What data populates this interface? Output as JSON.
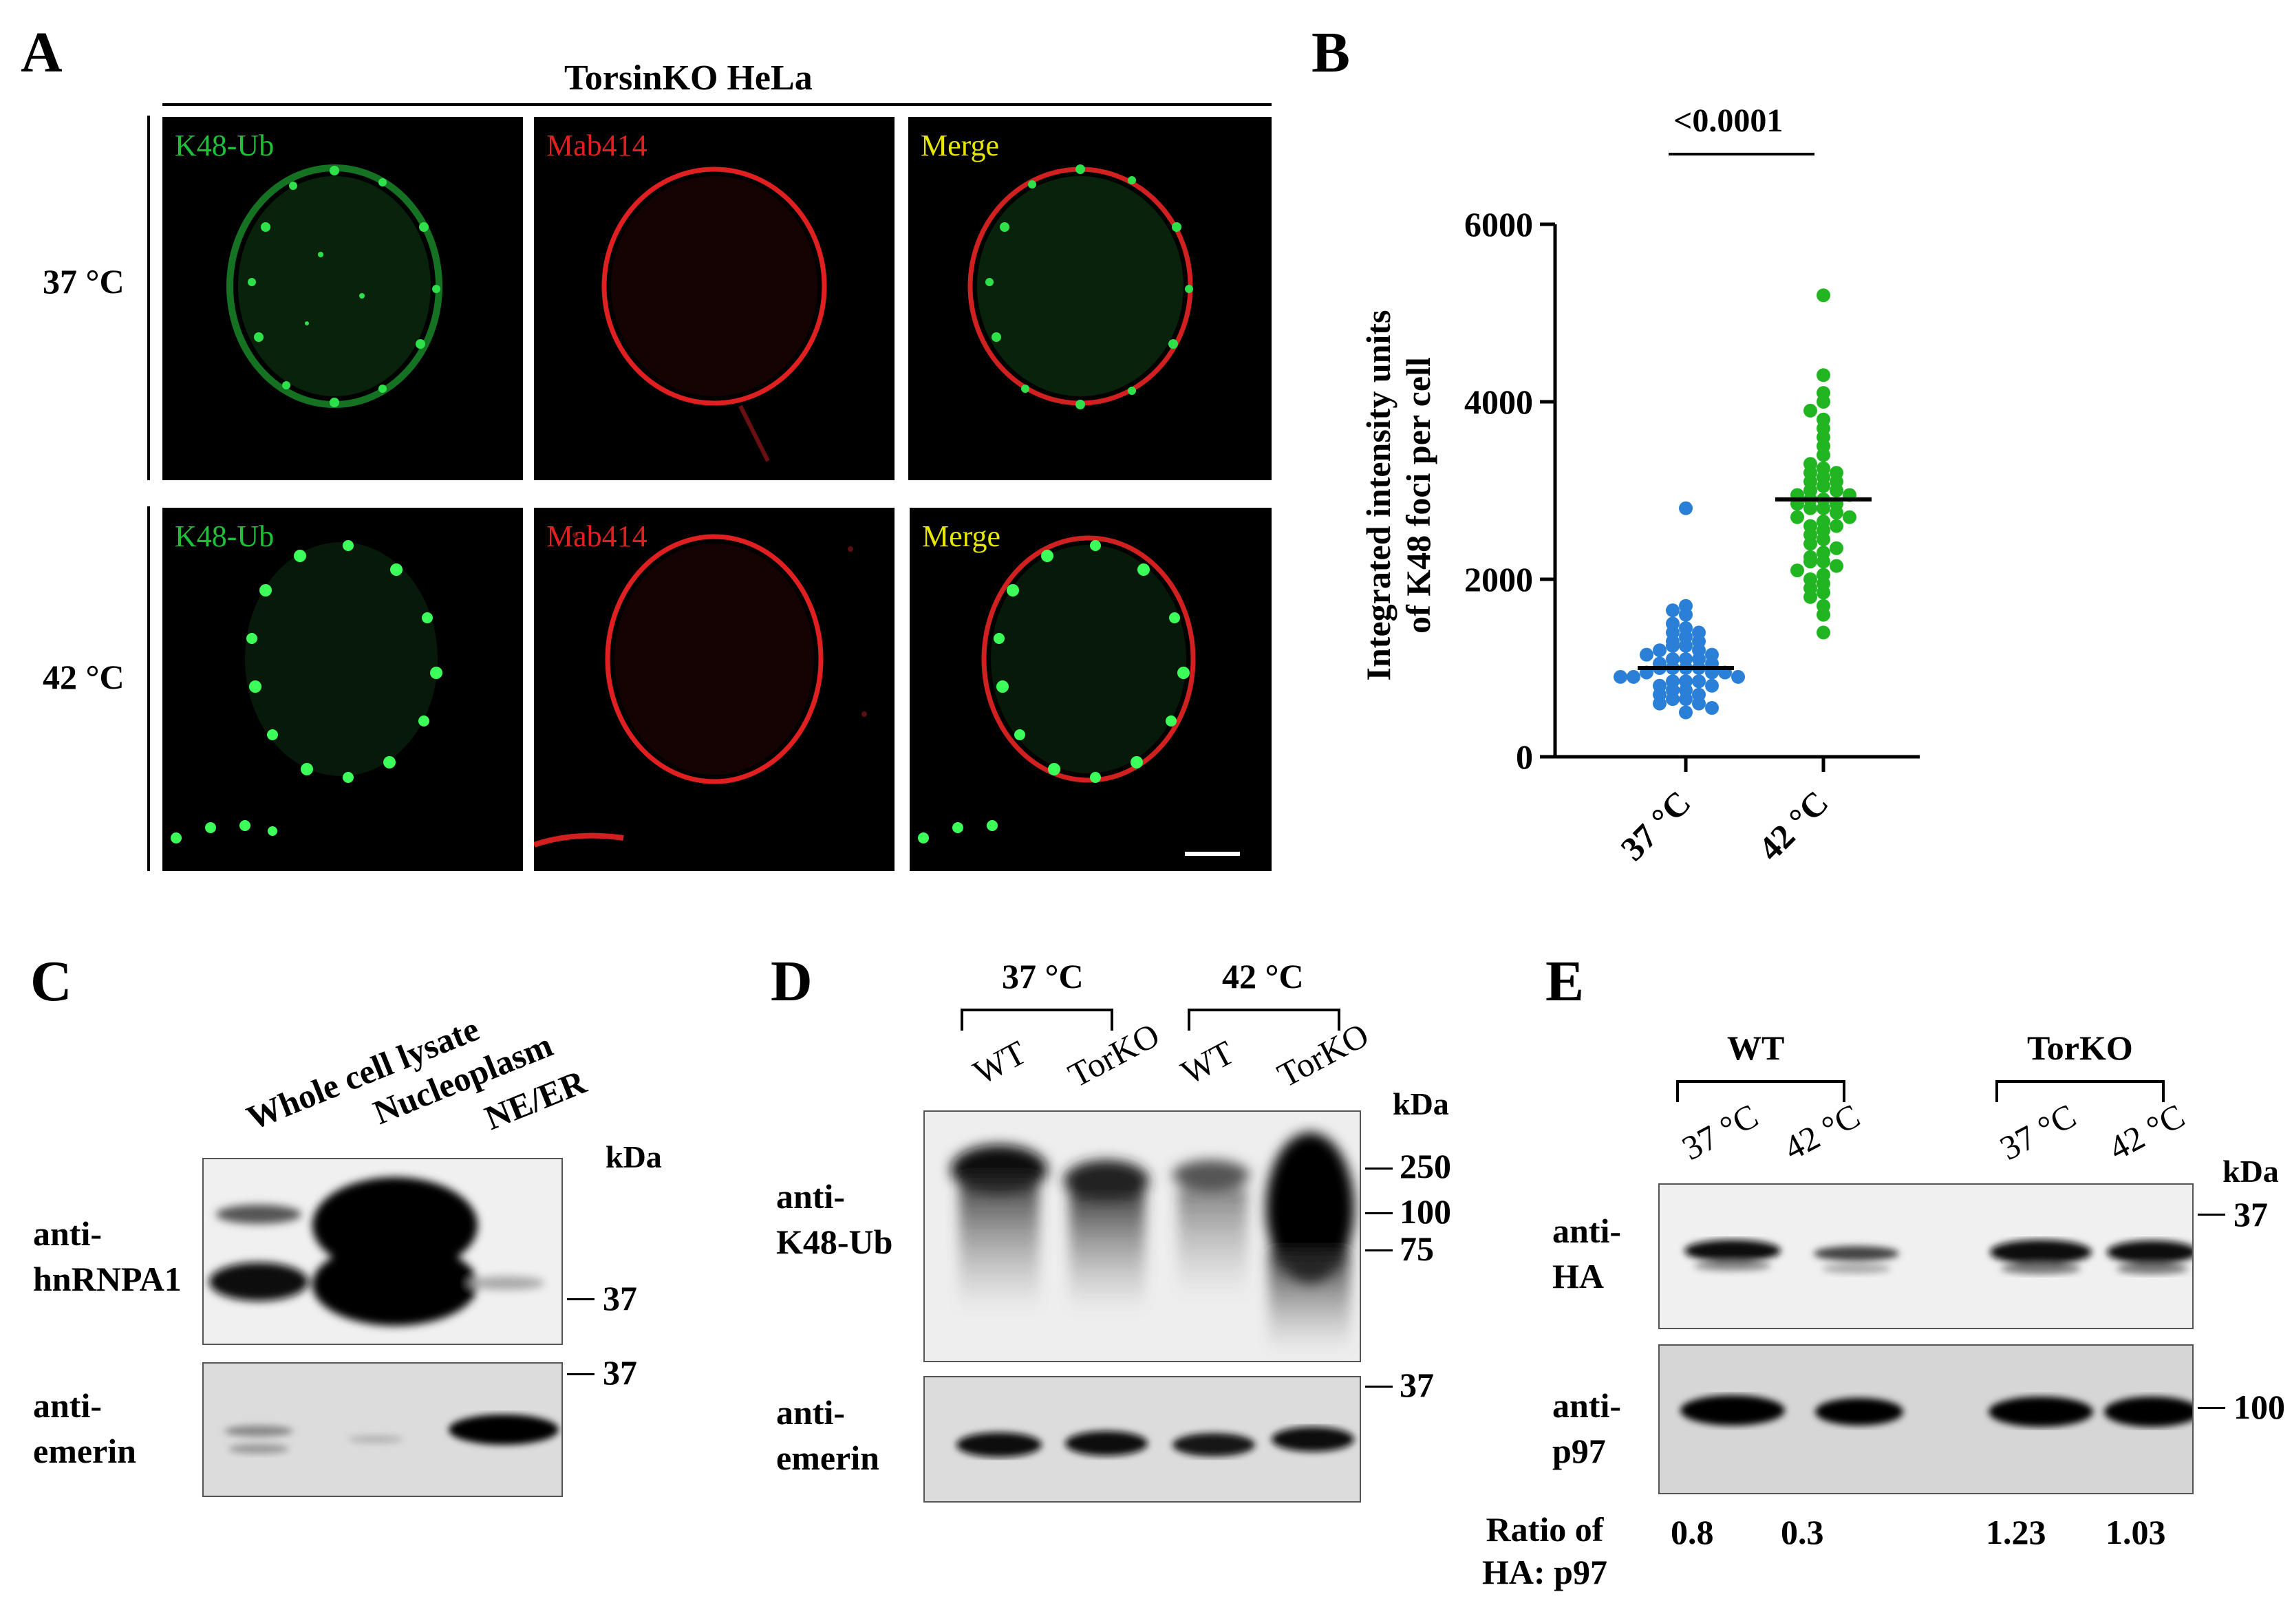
{
  "panel_a": {
    "label": "A",
    "title": "TorsinKO HeLa",
    "rows": [
      {
        "label": "37 °C",
        "channels": [
          "K48-Ub",
          "Mab414",
          "Merge"
        ]
      },
      {
        "label": "42 °C",
        "channels": [
          "K48-Ub",
          "Mab414",
          "Merge"
        ]
      }
    ],
    "channel_colors": {
      "K48-Ub": "#1fbf3a",
      "Mab414": "#e02020",
      "Merge": "#e6e600"
    }
  },
  "panel_b": {
    "label": "B",
    "significance": "<0.0001",
    "chart_data": {
      "type": "scatter",
      "ylabel": "Integrated intensity units of K48 foci per cell",
      "ylabel_lines": [
        "Integrated intensity units",
        "of K48 foci per cell"
      ],
      "categories": [
        "37 °C",
        "42 °C"
      ],
      "ylim": [
        0,
        6000
      ],
      "yticks": [
        0,
        2000,
        4000,
        6000
      ],
      "series": [
        {
          "category": "37 °C",
          "color": "#2a7fd6",
          "mean": 1000,
          "values": [
            2800,
            1700,
            1650,
            1600,
            1500,
            1450,
            1400,
            1400,
            1350,
            1300,
            1300,
            1250,
            1250,
            1200,
            1200,
            1150,
            1150,
            1100,
            1100,
            1100,
            1050,
            1050,
            1000,
            1000,
            1000,
            1000,
            950,
            950,
            950,
            900,
            900,
            900,
            850,
            850,
            850,
            800,
            800,
            750,
            750,
            700,
            700,
            650,
            650,
            600,
            600,
            550,
            500
          ]
        },
        {
          "category": "42 °C",
          "color": "#22b522",
          "mean": 2900,
          "values": [
            5200,
            4300,
            4100,
            4000,
            3900,
            3800,
            3700,
            3600,
            3500,
            3400,
            3300,
            3250,
            3200,
            3200,
            3150,
            3100,
            3100,
            3050,
            3000,
            3000,
            2950,
            2950,
            2900,
            2900,
            2850,
            2850,
            2800,
            2800,
            2750,
            2700,
            2700,
            2650,
            2600,
            2600,
            2550,
            2500,
            2450,
            2400,
            2350,
            2300,
            2250,
            2200,
            2200,
            2150,
            2100,
            2050,
            2000,
            1950,
            1900,
            1850,
            1800,
            1700,
            1600,
            1400
          ]
        }
      ]
    }
  },
  "panel_c": {
    "label": "C",
    "lanes": [
      "Whole cell lysate",
      "Nucleoplasm",
      "NE/ER"
    ],
    "kda": "kDa",
    "antibodies": [
      "anti-\nhnRNPA1",
      "anti-\nemerin"
    ],
    "markers": [
      "37",
      "37"
    ]
  },
  "panel_d": {
    "label": "D",
    "groups": [
      "37 °C",
      "42 °C"
    ],
    "lanes": [
      "WT",
      "TorKO",
      "WT",
      "TorKO"
    ],
    "kda": "kDa",
    "antibodies": [
      "anti-\nK48-Ub",
      "anti-\nemerin"
    ],
    "markers": [
      "250",
      "100",
      "75",
      "37"
    ]
  },
  "panel_e": {
    "label": "E",
    "groups": [
      "WT",
      "TorKO"
    ],
    "lanes": [
      "37 °C",
      "42 °C",
      "37 °C",
      "42 °C"
    ],
    "kda": "kDa",
    "antibodies": [
      "anti-\nHA",
      "anti-\np97"
    ],
    "markers": [
      "37",
      "100"
    ],
    "ratio_label": "Ratio of\nHA: p97",
    "ratios": [
      "0.8",
      "0.3",
      "1.23",
      "1.03"
    ]
  }
}
